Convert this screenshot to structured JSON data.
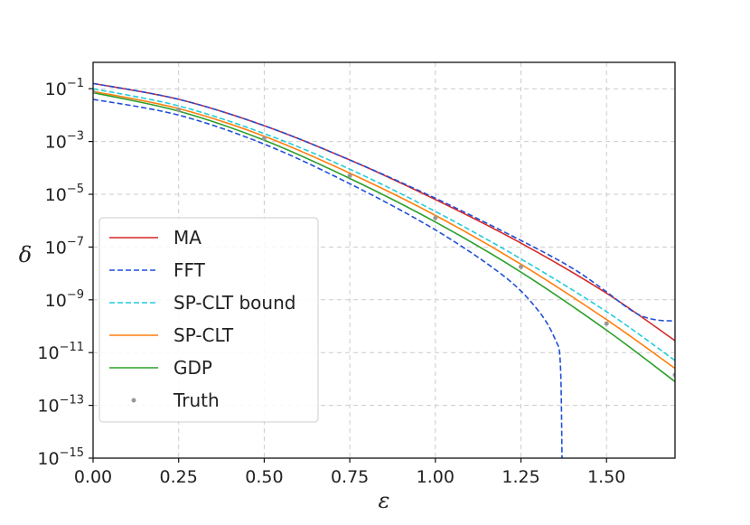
{
  "chart_data": {
    "type": "line",
    "xlabel": "ε",
    "ylabel": "δ",
    "xlim": [
      0,
      1.7
    ],
    "ylim_log10": [
      -15,
      0
    ],
    "yscale": "log",
    "grid": true,
    "legend_placement": "lower-left",
    "x_ticks": [
      "0.00",
      "0.25",
      "0.50",
      "0.75",
      "1.00",
      "1.25",
      "1.50"
    ],
    "y_ticks": [
      {
        "base": "10",
        "exp": "−1"
      },
      {
        "base": "10",
        "exp": "−3"
      },
      {
        "base": "10",
        "exp": "−5"
      },
      {
        "base": "10",
        "exp": "−7"
      },
      {
        "base": "10",
        "exp": "−9"
      },
      {
        "base": "10",
        "exp": "−11"
      },
      {
        "base": "10",
        "exp": "−13"
      },
      {
        "base": "10",
        "exp": "−15"
      }
    ],
    "series": [
      {
        "name": "MA",
        "color": "#d62728",
        "style": "solid",
        "x": [
          0.0,
          0.25,
          0.5,
          0.75,
          1.0,
          1.25,
          1.5,
          1.7
        ],
        "y_log10": [
          -0.8,
          -1.4,
          -2.4,
          -3.7,
          -5.2,
          -6.85,
          -8.75,
          -10.55
        ]
      },
      {
        "name": "FFT",
        "color": "#1f4fd8",
        "style": "dashed",
        "x": [
          0.0,
          0.25,
          0.5,
          0.75,
          1.0,
          1.25,
          1.4,
          1.5,
          1.55,
          1.6,
          1.65,
          1.7
        ],
        "y_log10": [
          -0.8,
          -1.4,
          -2.4,
          -3.7,
          -5.15,
          -6.75,
          -7.8,
          -8.7,
          -9.2,
          -9.6,
          -9.77,
          -9.8
        ]
      },
      {
        "name": "FFT",
        "color": "#1f4fd8",
        "style": "dashed",
        "legend": false,
        "x": [
          0.0,
          0.25,
          0.5,
          0.75,
          1.0,
          1.2,
          1.3,
          1.35,
          1.365,
          1.37
        ],
        "y_log10": [
          -1.4,
          -2.0,
          -3.1,
          -4.6,
          -6.35,
          -8.1,
          -9.4,
          -10.5,
          -11.4,
          -15.0
        ]
      },
      {
        "name": "SP-CLT bound",
        "color": "#22ccdd",
        "style": "dashed",
        "x": [
          0.0,
          0.25,
          0.5,
          0.75,
          1.0,
          1.25,
          1.5,
          1.7
        ],
        "y_log10": [
          -1.0,
          -1.65,
          -2.7,
          -4.05,
          -5.65,
          -7.45,
          -9.45,
          -11.3
        ]
      },
      {
        "name": "SP-CLT",
        "color": "#ff7f0e",
        "style": "solid",
        "x": [
          0.0,
          0.25,
          0.5,
          0.75,
          1.0,
          1.25,
          1.5,
          1.7
        ],
        "y_log10": [
          -1.1,
          -1.75,
          -2.8,
          -4.2,
          -5.8,
          -7.65,
          -9.75,
          -11.6
        ]
      },
      {
        "name": "GDP",
        "color": "#2ca02c",
        "style": "solid",
        "x": [
          0.0,
          0.25,
          0.5,
          0.75,
          1.0,
          1.25,
          1.5,
          1.7
        ],
        "y_log10": [
          -1.15,
          -1.85,
          -2.95,
          -4.4,
          -6.05,
          -7.95,
          -10.15,
          -12.1
        ]
      },
      {
        "name": "Truth",
        "color": "#999999",
        "style": "dot",
        "x": [
          0.0,
          0.25,
          0.5,
          0.75,
          1.0,
          1.25,
          1.5,
          1.7
        ],
        "y_log10": [
          -1.12,
          -1.8,
          -2.88,
          -4.3,
          -5.9,
          -7.75,
          -9.9,
          -11.85
        ]
      }
    ]
  }
}
